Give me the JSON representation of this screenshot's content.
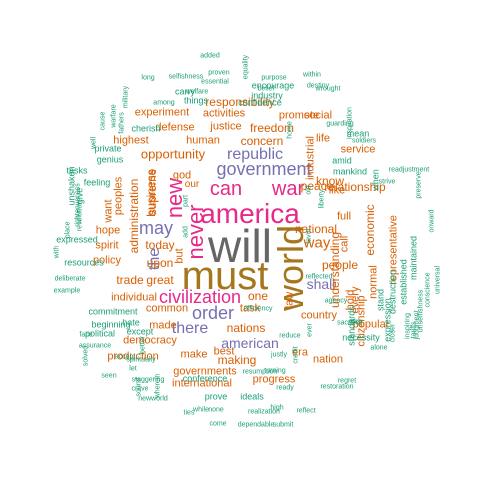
{
  "colors": {
    "teal": "#1b9e77",
    "orange": "#d95f02",
    "purple": "#7570b3",
    "magenta": "#e7298a",
    "gray": "#666666",
    "brown": "#a6761d",
    "olive": "#66a61e"
  },
  "words": [
    {
      "text": "will",
      "color": "gray",
      "weight": 10
    },
    {
      "text": "must",
      "color": "brown",
      "weight": 9
    },
    {
      "text": "world",
      "color": "brown",
      "weight": 9
    },
    {
      "text": "america",
      "color": "magenta",
      "weight": 8
    },
    {
      "text": "government",
      "color": "purple",
      "weight": 7
    },
    {
      "text": "new",
      "color": "magenta",
      "weight": 7
    },
    {
      "text": "never",
      "color": "magenta",
      "weight": 7
    },
    {
      "text": "can",
      "color": "magenta",
      "weight": 7
    },
    {
      "text": "war",
      "color": "magenta",
      "weight": 7
    },
    {
      "text": "civilization",
      "color": "magenta",
      "weight": 6
    },
    {
      "text": "may",
      "color": "purple",
      "weight": 6
    },
    {
      "text": "republic",
      "color": "purple",
      "weight": 6
    },
    {
      "text": "order",
      "color": "purple",
      "weight": 6
    },
    {
      "text": "the",
      "color": "purple",
      "weight": 6
    },
    {
      "text": "there",
      "color": "purple",
      "weight": 5
    },
    {
      "text": "american",
      "color": "purple",
      "weight": 5
    },
    {
      "text": "shall",
      "color": "purple",
      "weight": 5
    },
    {
      "text": "way",
      "color": "orange",
      "weight": 5
    },
    {
      "text": "opportunity",
      "color": "orange",
      "weight": 5
    },
    {
      "text": "administration",
      "color": "orange",
      "weight": 4
    },
    {
      "text": "responsibility",
      "color": "orange",
      "weight": 4
    },
    {
      "text": "freedom",
      "color": "orange",
      "weight": 4
    },
    {
      "text": "concern",
      "color": "orange",
      "weight": 4
    },
    {
      "text": "relationship",
      "color": "orange",
      "weight": 4
    },
    {
      "text": "nations",
      "color": "orange",
      "weight": 4
    },
    {
      "text": "people",
      "color": "orange",
      "weight": 4
    },
    {
      "text": "peace",
      "color": "orange",
      "weight": 4
    },
    {
      "text": "national",
      "color": "orange",
      "weight": 4
    },
    {
      "text": "know",
      "color": "orange",
      "weight": 4
    },
    {
      "text": "today",
      "color": "orange",
      "weight": 4
    },
    {
      "text": "upon",
      "color": "orange",
      "weight": 4
    },
    {
      "text": "trade",
      "color": "orange",
      "weight": 4
    },
    {
      "text": "great",
      "color": "orange",
      "weight": 4
    },
    {
      "text": "one",
      "color": "orange",
      "weight": 4
    },
    {
      "text": "supreme",
      "color": "orange",
      "weight": 4
    },
    {
      "text": "business",
      "color": "orange",
      "weight": 4
    },
    {
      "text": "our",
      "color": "orange",
      "weight": 3
    },
    {
      "text": "economic",
      "color": "orange",
      "weight": 3
    },
    {
      "text": "understanding",
      "color": "orange",
      "weight": 3
    },
    {
      "text": "making",
      "color": "orange",
      "weight": 3
    },
    {
      "text": "make",
      "color": "orange",
      "weight": 3
    },
    {
      "text": "production",
      "color": "orange",
      "weight": 3
    },
    {
      "text": "made",
      "color": "orange",
      "weight": 3
    },
    {
      "text": "common",
      "color": "orange",
      "weight": 3
    },
    {
      "text": "individual",
      "color": "orange",
      "weight": 3
    },
    {
      "text": "democracy",
      "color": "orange",
      "weight": 3
    },
    {
      "text": "human",
      "color": "orange",
      "weight": 3
    },
    {
      "text": "highest",
      "color": "orange",
      "weight": 3
    },
    {
      "text": "defense",
      "color": "orange",
      "weight": 3
    },
    {
      "text": "justice",
      "color": "orange",
      "weight": 3
    },
    {
      "text": "activities",
      "color": "orange",
      "weight": 3
    },
    {
      "text": "experiment",
      "color": "orange",
      "weight": 3
    },
    {
      "text": "promote",
      "color": "orange",
      "weight": 3
    },
    {
      "text": "social",
      "color": "orange",
      "weight": 3
    },
    {
      "text": "country",
      "color": "orange",
      "weight": 3
    },
    {
      "text": "nation",
      "color": "orange",
      "weight": 3
    },
    {
      "text": "task",
      "color": "orange",
      "weight": 3
    },
    {
      "text": "era",
      "color": "orange",
      "weight": 3
    },
    {
      "text": "best",
      "color": "orange",
      "weight": 3
    },
    {
      "text": "governments",
      "color": "orange",
      "weight": 3
    },
    {
      "text": "international",
      "color": "orange",
      "weight": 3
    },
    {
      "text": "progress",
      "color": "orange",
      "weight": 3
    },
    {
      "text": "service",
      "color": "orange",
      "weight": 3
    },
    {
      "text": "like",
      "color": "orange",
      "weight": 3
    },
    {
      "text": "full",
      "color": "orange",
      "weight": 3
    },
    {
      "text": "call",
      "color": "orange",
      "weight": 3
    },
    {
      "text": "hope",
      "color": "orange",
      "weight": 3
    },
    {
      "text": "want",
      "color": "orange",
      "weight": 3
    },
    {
      "text": "peoples",
      "color": "orange",
      "weight": 3
    },
    {
      "text": "policy",
      "color": "orange",
      "weight": 3
    },
    {
      "text": "spirit",
      "color": "orange",
      "weight": 3
    },
    {
      "text": "industrial",
      "color": "orange",
      "weight": 3
    },
    {
      "text": "life",
      "color": "orange",
      "weight": 3
    },
    {
      "text": "law",
      "color": "orange",
      "weight": 3
    },
    {
      "text": "god",
      "color": "orange",
      "weight": 3
    },
    {
      "text": "but",
      "color": "orange",
      "weight": 3
    },
    {
      "text": "popular",
      "color": "orange",
      "weight": 3
    },
    {
      "text": "citizenship",
      "color": "orange",
      "weight": 3
    },
    {
      "text": "normal",
      "color": "orange",
      "weight": 3
    },
    {
      "text": "hold",
      "color": "orange",
      "weight": 3
    },
    {
      "text": "representative",
      "color": "orange",
      "weight": 3
    },
    {
      "text": "every",
      "color": "orange",
      "weight": 3
    },
    {
      "text": "mean",
      "color": "teal",
      "weight": 2
    },
    {
      "text": "amid",
      "color": "teal",
      "weight": 2
    },
    {
      "text": "mankind",
      "color": "teal",
      "weight": 2
    },
    {
      "text": "when",
      "color": "teal",
      "weight": 2
    },
    {
      "text": "stand",
      "color": "teal",
      "weight": 2
    },
    {
      "text": "destruction",
      "color": "teal",
      "weight": 2
    },
    {
      "text": "expression",
      "color": "teal",
      "weight": 2
    },
    {
      "text": "established",
      "color": "teal",
      "weight": 2
    },
    {
      "text": "maintained",
      "color": "teal",
      "weight": 2
    },
    {
      "text": "standards",
      "color": "teal",
      "weight": 2
    },
    {
      "text": "necessity",
      "color": "teal",
      "weight": 2
    },
    {
      "text": "sacrifice",
      "color": "teal",
      "weight": 2
    },
    {
      "text": "agency",
      "color": "teal",
      "weight": 2
    },
    {
      "text": "grim",
      "color": "teal",
      "weight": 1
    },
    {
      "text": "reflected",
      "color": "teal",
      "weight": 1
    },
    {
      "text": "alone",
      "color": "teal",
      "weight": 1
    },
    {
      "text": "closer",
      "color": "teal",
      "weight": 1
    },
    {
      "text": "tariffs",
      "color": "teal",
      "weight": 1
    },
    {
      "text": "judgment",
      "color": "teal",
      "weight": 1
    },
    {
      "text": "conscience",
      "color": "teal",
      "weight": 1
    },
    {
      "text": "universal",
      "color": "teal",
      "weight": 1
    },
    {
      "text": "inspiring",
      "color": "teal",
      "weight": 1
    },
    {
      "text": "unselfishness",
      "color": "teal",
      "weight": 1
    },
    {
      "text": "onward",
      "color": "teal",
      "weight": 1
    },
    {
      "text": "preserve",
      "color": "teal",
      "weight": 1
    },
    {
      "text": "readjustment",
      "color": "teal",
      "weight": 1
    },
    {
      "text": "strive",
      "color": "teal",
      "weight": 1
    },
    {
      "text": "soldiers",
      "color": "teal",
      "weight": 1
    },
    {
      "text": "guarding",
      "color": "teal",
      "weight": 1
    },
    {
      "text": "wrought",
      "color": "teal",
      "weight": 1
    },
    {
      "text": "inspiration",
      "color": "teal",
      "weight": 2
    },
    {
      "text": "liberty",
      "color": "teal",
      "weight": 1
    },
    {
      "text": "destiny",
      "color": "teal",
      "weight": 1
    },
    {
      "text": "belief",
      "color": "teal",
      "weight": 1
    },
    {
      "text": "within",
      "color": "teal",
      "weight": 1
    },
    {
      "text": "purpose",
      "color": "teal",
      "weight": 1
    },
    {
      "text": "encourage",
      "color": "teal",
      "weight": 1
    },
    {
      "text": "confidence",
      "color": "teal",
      "weight": 2
    },
    {
      "text": "industry",
      "color": "teal",
      "weight": 2
    },
    {
      "text": "essential",
      "color": "teal",
      "weight": 2
    },
    {
      "text": "proven",
      "color": "teal",
      "weight": 1
    },
    {
      "text": "equality",
      "color": "teal",
      "weight": 1
    },
    {
      "text": "added",
      "color": "teal",
      "weight": 1
    },
    {
      "text": "selfishness",
      "color": "teal",
      "weight": 1
    },
    {
      "text": "long",
      "color": "teal",
      "weight": 1
    },
    {
      "text": "welfare",
      "color": "teal",
      "weight": 1
    },
    {
      "text": "carry",
      "color": "teal",
      "weight": 1
    },
    {
      "text": "things",
      "color": "teal",
      "weight": 2
    },
    {
      "text": "among",
      "color": "teal",
      "weight": 2
    },
    {
      "text": "military",
      "color": "teal",
      "weight": 1
    },
    {
      "text": "warfare",
      "color": "teal",
      "weight": 2
    },
    {
      "text": "fathers",
      "color": "teal",
      "weight": 1
    },
    {
      "text": "cause",
      "color": "teal",
      "weight": 1
    },
    {
      "text": "well",
      "color": "teal",
      "weight": 1
    },
    {
      "text": "cherish",
      "color": "teal",
      "weight": 1
    },
    {
      "text": "private",
      "color": "teal",
      "weight": 1
    },
    {
      "text": "genius",
      "color": "teal",
      "weight": 2
    },
    {
      "text": "tasks",
      "color": "teal",
      "weight": 2
    },
    {
      "text": "feeling",
      "color": "teal",
      "weight": 2
    },
    {
      "text": "unshaken",
      "color": "teal",
      "weight": 2
    },
    {
      "text": "give",
      "color": "teal",
      "weight": 2
    },
    {
      "text": "righteousness",
      "color": "teal",
      "weight": 2
    },
    {
      "text": "revolution",
      "color": "teal",
      "weight": 2
    },
    {
      "text": "place",
      "color": "teal",
      "weight": 1
    },
    {
      "text": "with",
      "color": "teal",
      "weight": 1
    },
    {
      "text": "expressed",
      "color": "teal",
      "weight": 1
    },
    {
      "text": "resources",
      "color": "teal",
      "weight": 1
    },
    {
      "text": "deliberate",
      "color": "teal",
      "weight": 2
    },
    {
      "text": "example",
      "color": "teal",
      "weight": 2
    },
    {
      "text": "commitment",
      "color": "teal",
      "weight": 1
    },
    {
      "text": "beginning",
      "color": "teal",
      "weight": 1
    },
    {
      "text": "hate",
      "color": "teal",
      "weight": 2
    },
    {
      "text": "political",
      "color": "teal",
      "weight": 2
    },
    {
      "text": "face",
      "color": "teal",
      "weight": 2
    },
    {
      "text": "assurance",
      "color": "teal",
      "weight": 2
    },
    {
      "text": "solved",
      "color": "teal",
      "weight": 1
    },
    {
      "text": "except",
      "color": "teal",
      "weight": 1
    },
    {
      "text": "accept",
      "color": "teal",
      "weight": 1
    },
    {
      "text": "let",
      "color": "teal",
      "weight": 2
    },
    {
      "text": "spiritually",
      "color": "teal",
      "weight": 1
    },
    {
      "text": "better",
      "color": "teal",
      "weight": 1
    },
    {
      "text": "staggering",
      "color": "teal",
      "weight": 1
    },
    {
      "text": "seen",
      "color": "teal",
      "weight": 1
    },
    {
      "text": "crave",
      "color": "teal",
      "weight": 1
    },
    {
      "text": "sound",
      "color": "teal",
      "weight": 1
    },
    {
      "text": "newworld",
      "color": "teal",
      "weight": 1
    },
    {
      "text": "wherein",
      "color": "teal",
      "weight": 1
    },
    {
      "text": "while",
      "color": "teal",
      "weight": 1
    },
    {
      "text": "come",
      "color": "teal",
      "weight": 1
    },
    {
      "text": "ties",
      "color": "teal",
      "weight": 1
    },
    {
      "text": "none",
      "color": "teal",
      "weight": 1
    },
    {
      "text": "conference",
      "color": "teal",
      "weight": 1
    },
    {
      "text": "prove",
      "color": "teal",
      "weight": 1
    },
    {
      "text": "ideals",
      "color": "teal",
      "weight": 2
    },
    {
      "text": "ready",
      "color": "teal",
      "weight": 2
    },
    {
      "text": "realization",
      "color": "teal",
      "weight": 2
    },
    {
      "text": "high",
      "color": "teal",
      "weight": 1
    },
    {
      "text": "dependable",
      "color": "teal",
      "weight": 1
    },
    {
      "text": "submit",
      "color": "teal",
      "weight": 1
    },
    {
      "text": "reflect",
      "color": "teal",
      "weight": 1
    },
    {
      "text": "resumption",
      "color": "teal",
      "weight": 1
    },
    {
      "text": "turning",
      "color": "teal",
      "weight": 1
    },
    {
      "text": "credit",
      "color": "teal",
      "weight": 1
    },
    {
      "text": "justly",
      "color": "teal",
      "weight": 1
    },
    {
      "text": "restoration",
      "color": "teal",
      "weight": 1
    },
    {
      "text": "regret",
      "color": "teal",
      "weight": 1
    },
    {
      "text": "reduce",
      "color": "teal",
      "weight": 1
    },
    {
      "text": "efficiency",
      "color": "teal",
      "weight": 1
    },
    {
      "text": "home",
      "color": "teal",
      "weight": 1
    },
    {
      "text": "add",
      "color": "teal",
      "weight": 1
    },
    {
      "text": "part",
      "color": "teal",
      "weight": 1
    },
    {
      "text": "old",
      "color": "teal",
      "weight": 1
    },
    {
      "text": "favor",
      "color": "teal",
      "weight": 1
    },
    {
      "text": "ever",
      "color": "teal",
      "weight": 1
    },
    {
      "text": "living",
      "color": "teal",
      "weight": 1
    },
    {
      "text": "seek",
      "color": "teal",
      "weight": 1
    }
  ]
}
